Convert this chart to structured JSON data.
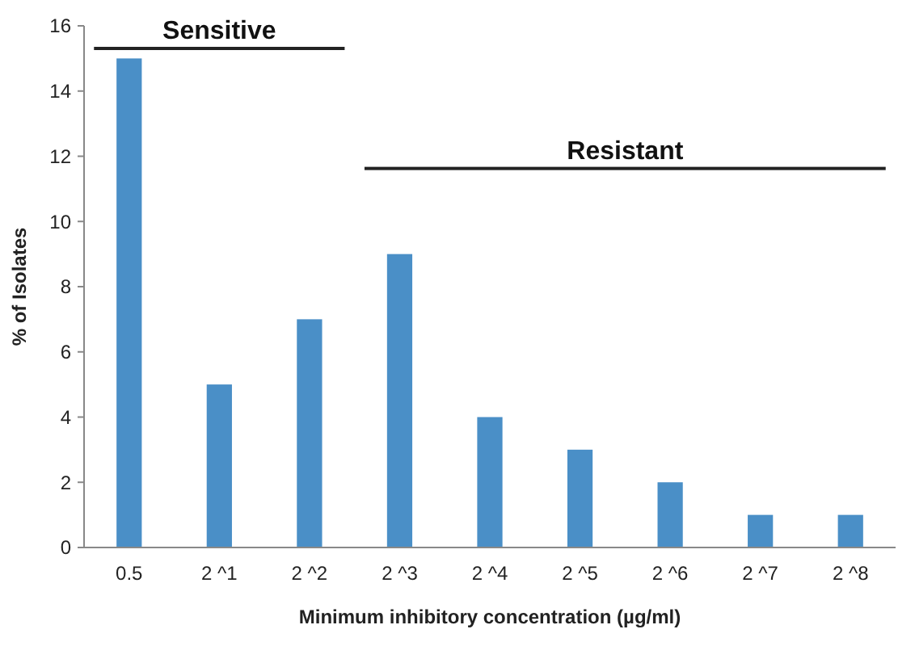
{
  "chart_data": {
    "type": "bar",
    "xlabel": "Minimum inhibitory concentration (µg/ml)",
    "ylabel": "% of Isolates",
    "categories": [
      "0.5",
      "2 ^1",
      "2 ^2",
      "2 ^3",
      "2 ^4",
      "2 ^5",
      "2 ^6",
      "2 ^7",
      "2 ^8"
    ],
    "values": [
      15,
      5,
      7,
      9,
      4,
      3,
      2,
      1,
      1
    ],
    "color": "#4a8fc7",
    "ylim": [
      0,
      16
    ],
    "yticks": [
      0,
      2,
      4,
      6,
      8,
      10,
      12,
      14,
      16
    ],
    "grid": false,
    "annotations": [
      "Sensitive",
      "Resistant"
    ]
  }
}
